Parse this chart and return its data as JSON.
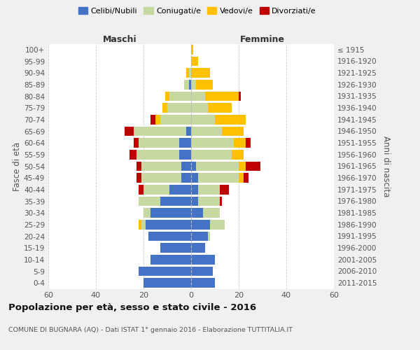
{
  "age_groups": [
    "0-4",
    "5-9",
    "10-14",
    "15-19",
    "20-24",
    "25-29",
    "30-34",
    "35-39",
    "40-44",
    "45-49",
    "50-54",
    "55-59",
    "60-64",
    "65-69",
    "70-74",
    "75-79",
    "80-84",
    "85-89",
    "90-94",
    "95-99",
    "100+"
  ],
  "birth_years": [
    "2011-2015",
    "2006-2010",
    "2001-2005",
    "1996-2000",
    "1991-1995",
    "1986-1990",
    "1981-1985",
    "1976-1980",
    "1971-1975",
    "1966-1970",
    "1961-1965",
    "1956-1960",
    "1951-1955",
    "1946-1950",
    "1941-1945",
    "1936-1940",
    "1931-1935",
    "1926-1930",
    "1921-1925",
    "1916-1920",
    "≤ 1915"
  ],
  "maschi": {
    "celibi": [
      20,
      22,
      17,
      13,
      18,
      19,
      17,
      13,
      9,
      4,
      4,
      5,
      5,
      2,
      0,
      0,
      0,
      1,
      0,
      0,
      0
    ],
    "coniugati": [
      0,
      0,
      0,
      0,
      0,
      2,
      3,
      9,
      11,
      17,
      17,
      18,
      17,
      22,
      13,
      10,
      9,
      2,
      1,
      0,
      0
    ],
    "vedovi": [
      0,
      0,
      0,
      0,
      0,
      1,
      0,
      0,
      0,
      0,
      0,
      0,
      0,
      0,
      2,
      2,
      2,
      0,
      1,
      0,
      0
    ],
    "divorziati": [
      0,
      0,
      0,
      0,
      0,
      0,
      0,
      0,
      2,
      2,
      2,
      3,
      2,
      4,
      2,
      0,
      0,
      0,
      0,
      0,
      0
    ]
  },
  "femmine": {
    "nubili": [
      10,
      9,
      10,
      6,
      7,
      8,
      5,
      3,
      3,
      3,
      2,
      0,
      0,
      0,
      0,
      0,
      0,
      0,
      0,
      0,
      0
    ],
    "coniugate": [
      0,
      0,
      0,
      0,
      1,
      6,
      7,
      9,
      9,
      17,
      18,
      17,
      18,
      13,
      10,
      7,
      6,
      2,
      0,
      0,
      0
    ],
    "vedove": [
      0,
      0,
      0,
      0,
      0,
      0,
      0,
      0,
      0,
      2,
      3,
      5,
      5,
      9,
      13,
      10,
      14,
      7,
      8,
      3,
      1
    ],
    "divorziate": [
      0,
      0,
      0,
      0,
      0,
      0,
      0,
      1,
      4,
      2,
      6,
      0,
      2,
      0,
      0,
      0,
      1,
      0,
      0,
      0,
      0
    ]
  },
  "colors": {
    "celibi_nubili": "#4472c4",
    "coniugati": "#c5d9a0",
    "vedovi": "#ffc000",
    "divorziati": "#c00000"
  },
  "xlim": 60,
  "title": "Popolazione per età, sesso e stato civile - 2016",
  "subtitle": "COMUNE DI BUGNARA (AQ) - Dati ISTAT 1° gennaio 2016 - Elaborazione TUTTITALIA.IT",
  "ylabel_left": "Fasce di età",
  "ylabel_right": "Anni di nascita",
  "xlabel_left": "Maschi",
  "xlabel_right": "Femmine",
  "bg_color": "#f0f0f0",
  "plot_bg_color": "#ffffff"
}
